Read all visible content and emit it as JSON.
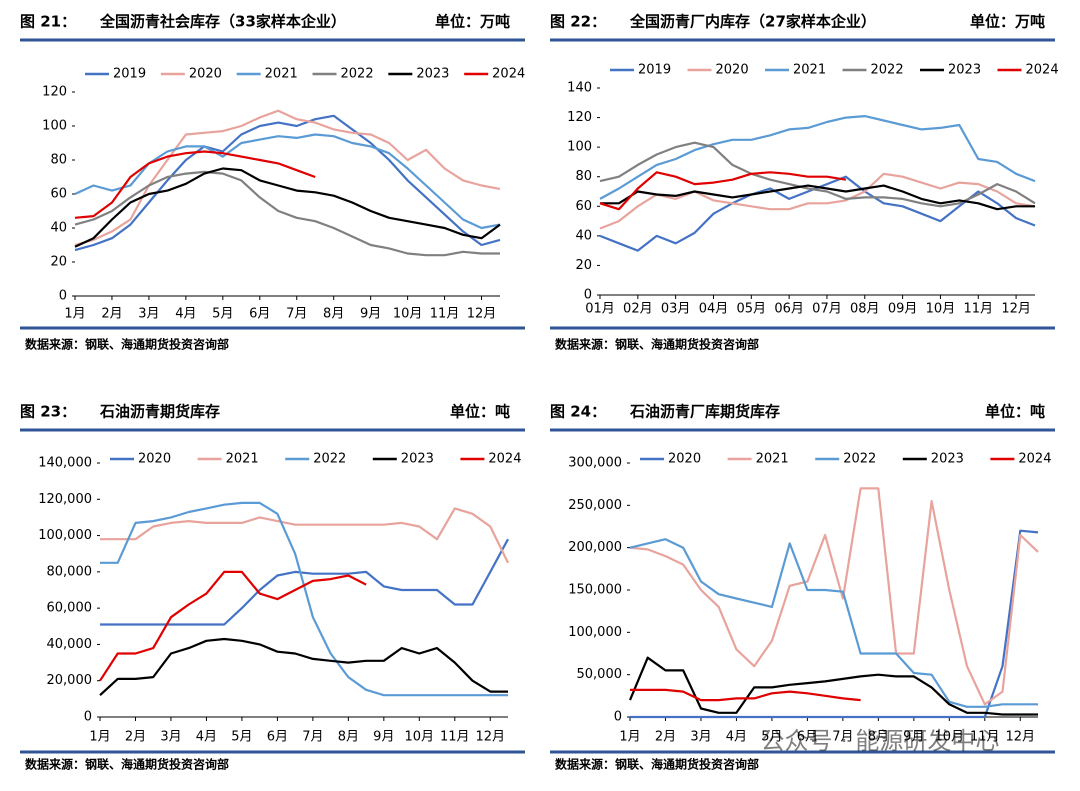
{
  "chart_data": [
    {
      "type": "line",
      "figure_label": "图 21：",
      "title": "全国沥青社会库存（33家样本企业）",
      "unit": "单位：万吨",
      "source": "数据来源：钢联、海通期货投资咨询部",
      "categories": [
        "1月",
        null,
        "2月",
        null,
        "3月",
        null,
        "4月",
        null,
        "5月",
        null,
        "6月",
        null,
        "7月",
        null,
        "8月",
        null,
        "9月",
        null,
        "10月",
        null,
        "11月",
        null,
        "12月",
        null
      ],
      "ylim": [
        0,
        120
      ],
      "yticks": [
        0,
        20,
        40,
        60,
        80,
        100,
        120
      ],
      "series": [
        {
          "name": "2019",
          "color": "#4472c4",
          "values": [
            27,
            30,
            34,
            42,
            55,
            68,
            80,
            88,
            85,
            95,
            100,
            102,
            100,
            104,
            106,
            98,
            90,
            80,
            68,
            58,
            48,
            38,
            30,
            33
          ]
        },
        {
          "name": "2020",
          "color": "#e8a39c",
          "values": [
            30,
            33,
            38,
            45,
            65,
            80,
            95,
            96,
            97,
            100,
            105,
            109,
            104,
            102,
            98,
            96,
            95,
            90,
            80,
            86,
            75,
            68,
            65,
            63
          ]
        },
        {
          "name": "2021",
          "color": "#5b9bd5",
          "values": [
            60,
            65,
            62,
            65,
            78,
            85,
            88,
            88,
            82,
            90,
            92,
            94,
            93,
            95,
            94,
            90,
            88,
            84,
            75,
            65,
            55,
            45,
            40,
            42
          ]
        },
        {
          "name": "2022",
          "color": "#808080",
          "values": [
            42,
            45,
            50,
            58,
            65,
            70,
            72,
            73,
            72,
            68,
            58,
            50,
            46,
            44,
            40,
            35,
            30,
            28,
            25,
            24,
            24,
            26,
            25,
            25
          ]
        },
        {
          "name": "2023",
          "color": "#000000",
          "values": [
            29,
            34,
            45,
            55,
            60,
            62,
            66,
            72,
            75,
            74,
            68,
            65,
            62,
            61,
            59,
            55,
            50,
            46,
            44,
            42,
            40,
            36,
            34,
            42
          ]
        },
        {
          "name": "2024",
          "color": "#e00000",
          "values": [
            46,
            47,
            55,
            70,
            78,
            82,
            84,
            85,
            84,
            82,
            80,
            78,
            74,
            70,
            null,
            null,
            null,
            null,
            null,
            null,
            null,
            null,
            null,
            null
          ]
        }
      ]
    },
    {
      "type": "line",
      "figure_label": "图 22：",
      "title": "全国沥青厂内库存（27家样本企业）",
      "unit": "单位：万吨",
      "source": "数据来源：钢联、海通期货投资咨询部",
      "categories": [
        "01月",
        null,
        "02月",
        null,
        "03月",
        null,
        "04月",
        null,
        "05月",
        null,
        "06月",
        null,
        "07月",
        null,
        "08月",
        null,
        "09月",
        null,
        "10月",
        null,
        "11月",
        null,
        "12月",
        null
      ],
      "ylim": [
        0,
        140
      ],
      "yticks": [
        0,
        20,
        40,
        60,
        80,
        100,
        120,
        140
      ],
      "series": [
        {
          "name": "2019",
          "color": "#4472c4",
          "values": [
            40,
            35,
            30,
            40,
            35,
            42,
            55,
            62,
            68,
            72,
            65,
            70,
            75,
            80,
            70,
            62,
            60,
            55,
            50,
            60,
            70,
            62,
            52,
            47
          ]
        },
        {
          "name": "2020",
          "color": "#e8a39c",
          "values": [
            45,
            50,
            60,
            68,
            65,
            70,
            64,
            62,
            60,
            58,
            58,
            62,
            62,
            64,
            70,
            82,
            80,
            76,
            72,
            76,
            75,
            70,
            62,
            60
          ]
        },
        {
          "name": "2021",
          "color": "#5b9bd5",
          "values": [
            65,
            72,
            80,
            88,
            92,
            98,
            102,
            105,
            105,
            108,
            112,
            113,
            117,
            120,
            121,
            118,
            115,
            112,
            113,
            115,
            92,
            90,
            82,
            77
          ]
        },
        {
          "name": "2022",
          "color": "#808080",
          "values": [
            77,
            80,
            88,
            95,
            100,
            103,
            100,
            88,
            82,
            78,
            75,
            72,
            70,
            65,
            66,
            66,
            65,
            62,
            60,
            62,
            68,
            75,
            70,
            62
          ]
        },
        {
          "name": "2023",
          "color": "#000000",
          "values": [
            62,
            62,
            70,
            68,
            67,
            70,
            68,
            66,
            68,
            70,
            72,
            74,
            72,
            70,
            72,
            74,
            70,
            65,
            62,
            64,
            62,
            58,
            60,
            60
          ]
        },
        {
          "name": "2024",
          "color": "#e00000",
          "values": [
            62,
            58,
            72,
            83,
            80,
            75,
            76,
            78,
            82,
            83,
            82,
            80,
            80,
            78,
            null,
            null,
            null,
            null,
            null,
            null,
            null,
            null,
            null,
            null
          ]
        }
      ]
    },
    {
      "type": "line",
      "figure_label": "图 23：",
      "title": "石油沥青期货库存",
      "unit": "单位：吨",
      "source": "数据来源：钢联、海通期货投资咨询部",
      "categories": [
        "1月",
        null,
        "2月",
        null,
        "3月",
        null,
        "4月",
        null,
        "5月",
        null,
        "6月",
        null,
        "7月",
        null,
        "8月",
        null,
        "9月",
        null,
        "10月",
        null,
        "11月",
        null,
        "12月",
        null
      ],
      "ylim": [
        0,
        140000
      ],
      "yticks": [
        0,
        {
          "value": 20000,
          "label": "20,000"
        },
        {
          "value": 40000,
          "label": "40,000"
        },
        {
          "value": 60000,
          "label": "60,000"
        },
        {
          "value": 80000,
          "label": "80,000"
        },
        {
          "value": 100000,
          "label": "100,000"
        },
        {
          "value": 120000,
          "label": "120,000"
        },
        {
          "value": 140000,
          "label": "140,000"
        }
      ],
      "series": [
        {
          "name": "2020",
          "color": "#4472c4",
          "values": [
            51000,
            51000,
            51000,
            51000,
            51000,
            51000,
            51000,
            51000,
            60000,
            70000,
            78000,
            80000,
            79000,
            79000,
            79000,
            80000,
            72000,
            70000,
            70000,
            70000,
            62000,
            62000,
            80000,
            98000
          ]
        },
        {
          "name": "2021",
          "color": "#e8a39c",
          "values": [
            98000,
            98000,
            98000,
            105000,
            107000,
            108000,
            107000,
            107000,
            107000,
            110000,
            108000,
            106000,
            106000,
            106000,
            106000,
            106000,
            106000,
            107000,
            105000,
            98000,
            115000,
            112000,
            105000,
            85000
          ]
        },
        {
          "name": "2022",
          "color": "#5b9bd5",
          "values": [
            85000,
            85000,
            107000,
            108000,
            110000,
            113000,
            115000,
            117000,
            118000,
            118000,
            112000,
            90000,
            55000,
            35000,
            22000,
            15000,
            12000,
            12000,
            12000,
            12000,
            12000,
            12000,
            12000,
            12000
          ]
        },
        {
          "name": "2023",
          "color": "#000000",
          "values": [
            12000,
            21000,
            21000,
            22000,
            35000,
            38000,
            42000,
            43000,
            42000,
            40000,
            36000,
            35000,
            32000,
            31000,
            30000,
            31000,
            31000,
            38000,
            35000,
            38000,
            30000,
            20000,
            14000,
            14000
          ]
        },
        {
          "name": "2024",
          "color": "#e00000",
          "values": [
            20000,
            35000,
            35000,
            38000,
            55000,
            62000,
            68000,
            80000,
            80000,
            68000,
            65000,
            70000,
            75000,
            76000,
            78000,
            73000,
            null,
            null,
            null,
            null,
            null,
            null,
            null,
            null
          ]
        }
      ]
    },
    {
      "type": "line",
      "figure_label": "图 24：",
      "title": "石油沥青厂库期货库存",
      "unit": "单位：吨",
      "source": "数据来源：钢联、海通期货投资咨询部",
      "categories": [
        "1月",
        null,
        "2月",
        null,
        "3月",
        null,
        "4月",
        null,
        "5月",
        null,
        "6月",
        null,
        "7月",
        null,
        "8月",
        null,
        "9月",
        null,
        "10月",
        null,
        "11月",
        null,
        "12月",
        null
      ],
      "ylim": [
        0,
        300000
      ],
      "yticks": [
        0,
        {
          "value": 50000,
          "label": "50,000"
        },
        {
          "value": 100000,
          "label": "100,000"
        },
        {
          "value": 150000,
          "label": "150,000"
        },
        {
          "value": 200000,
          "label": "200,000"
        },
        {
          "value": 250000,
          "label": "250,000"
        },
        {
          "value": 300000,
          "label": "300,000"
        }
      ],
      "series": [
        {
          "name": "2020",
          "color": "#4472c4",
          "values": [
            0,
            0,
            0,
            0,
            0,
            0,
            0,
            0,
            0,
            0,
            0,
            0,
            0,
            0,
            0,
            0,
            0,
            0,
            0,
            0,
            0,
            60000,
            220000,
            218000
          ]
        },
        {
          "name": "2021",
          "color": "#e8a39c",
          "values": [
            200000,
            198000,
            190000,
            180000,
            150000,
            130000,
            80000,
            60000,
            90000,
            155000,
            160000,
            215000,
            140000,
            270000,
            270000,
            75000,
            75000,
            255000,
            150000,
            60000,
            15000,
            30000,
            215000,
            195000
          ]
        },
        {
          "name": "2022",
          "color": "#5b9bd5",
          "values": [
            200000,
            205000,
            210000,
            200000,
            160000,
            145000,
            140000,
            135000,
            130000,
            205000,
            150000,
            150000,
            148000,
            75000,
            75000,
            75000,
            52000,
            50000,
            18000,
            12000,
            12000,
            15000,
            15000,
            15000
          ]
        },
        {
          "name": "2023",
          "color": "#000000",
          "values": [
            20000,
            70000,
            55000,
            55000,
            10000,
            5000,
            5000,
            35000,
            35000,
            38000,
            40000,
            42000,
            45000,
            48000,
            50000,
            48000,
            48000,
            35000,
            15000,
            5000,
            5000,
            3000,
            3000,
            3000
          ]
        },
        {
          "name": "2024",
          "color": "#e00000",
          "values": [
            32000,
            32000,
            32000,
            30000,
            20000,
            20000,
            22000,
            22000,
            28000,
            30000,
            28000,
            25000,
            22000,
            20000,
            null,
            null,
            null,
            null,
            null,
            null,
            null,
            null,
            null,
            null
          ]
        }
      ]
    }
  ],
  "watermark": "公众号 · 能源研发中心"
}
